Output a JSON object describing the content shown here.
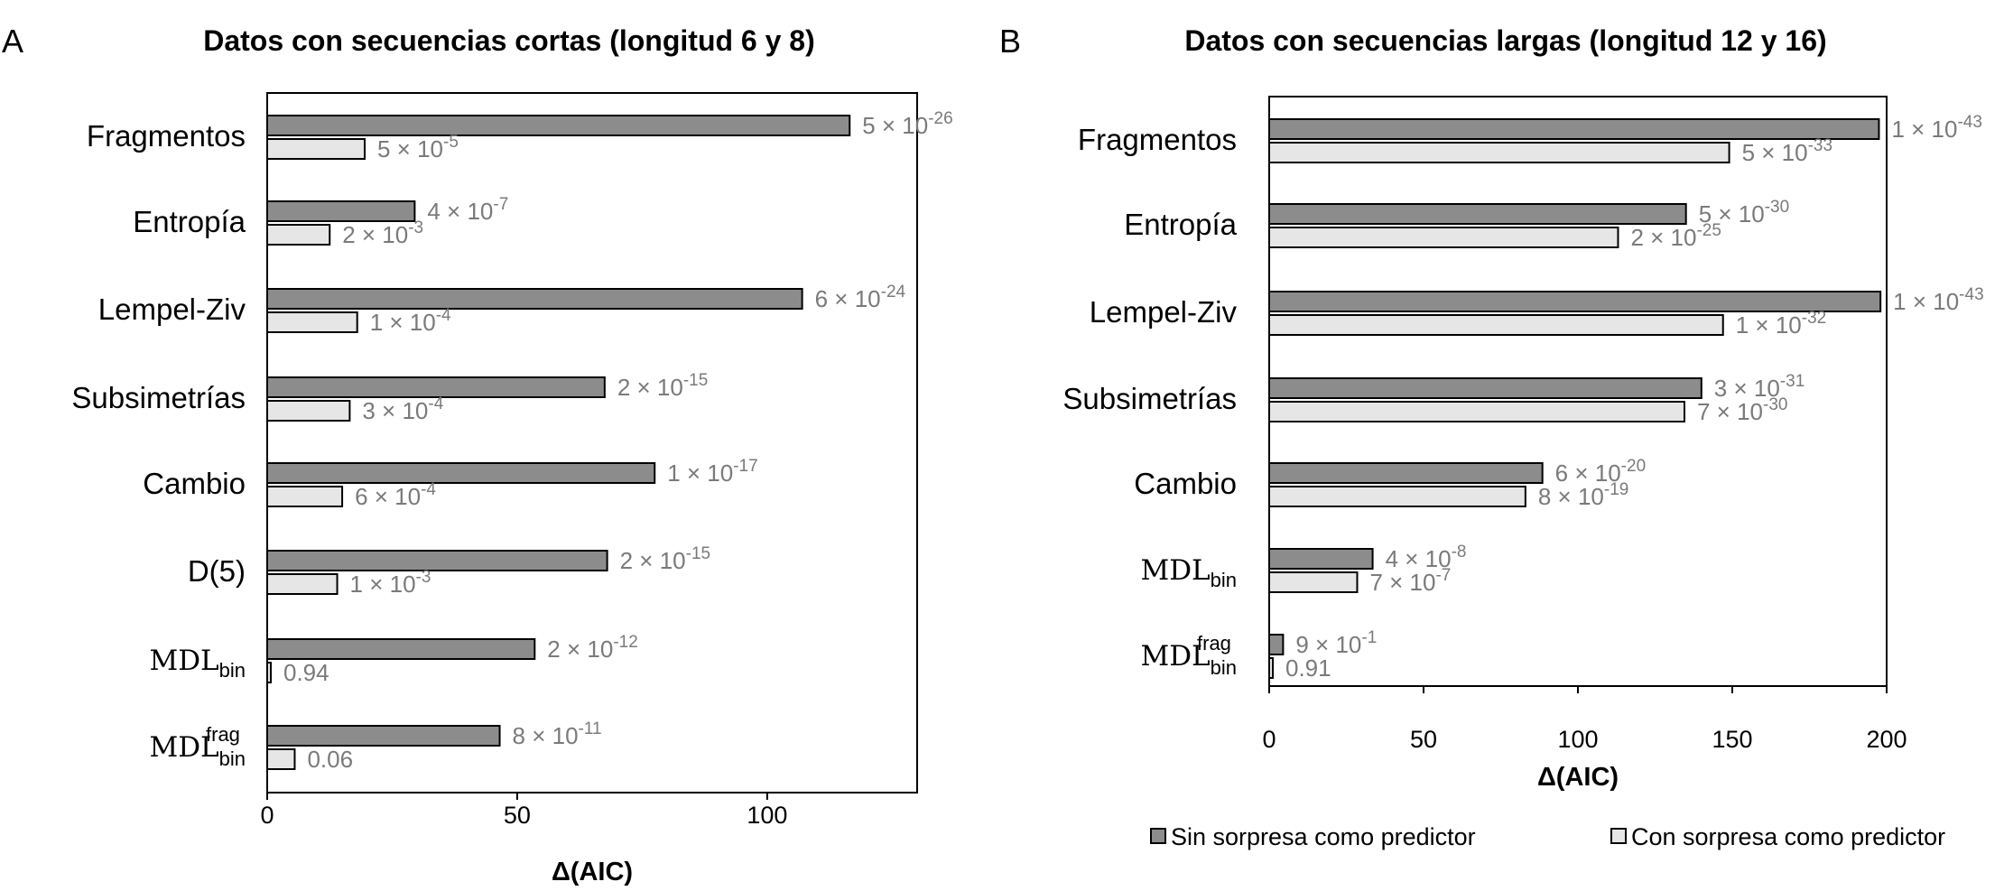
{
  "colors": {
    "sin_sorpresa": "#8c8c8c",
    "con_sorpresa": "#e6e6e6",
    "bar_stroke": "#000000",
    "p_label": "#7a7a7a"
  },
  "legend": {
    "sin_sorpresa": "Sin sorpresa como predictor",
    "con_sorpresa": "Con sorpresa como predictor"
  },
  "chart_data": [
    {
      "panel": "A",
      "type": "bar",
      "orientation": "horizontal",
      "title": "Datos con secuencias cortas (longitud 6 y 8)",
      "xlabel": "Δ(AIC)",
      "xlim": [
        0,
        130
      ],
      "xticks": [
        0,
        50,
        100
      ],
      "grid": false,
      "categories": [
        {
          "text": "Fragmentos"
        },
        {
          "text": "Entropía"
        },
        {
          "text": "Lempel-Ziv"
        },
        {
          "text": "Subsimetrías"
        },
        {
          "text": "Cambio"
        },
        {
          "text": "D(5)"
        },
        {
          "base": "MDL",
          "sub": "bin"
        },
        {
          "base": "MDL",
          "sub": "bin",
          "sup": "frag"
        }
      ],
      "series": [
        {
          "name": "Sin sorpresa como predictor",
          "values": [
            116.5,
            29.5,
            107,
            67.5,
            77.5,
            68,
            53.5,
            46.5
          ],
          "labels": [
            {
              "m": "5",
              "e": "-26"
            },
            {
              "m": "4",
              "e": "-7"
            },
            {
              "m": "6",
              "e": "-24"
            },
            {
              "m": "2",
              "e": "-15"
            },
            {
              "m": "1",
              "e": "-17"
            },
            {
              "m": "2",
              "e": "-15"
            },
            {
              "m": "2",
              "e": "-12"
            },
            {
              "m": "8",
              "e": "-11"
            }
          ]
        },
        {
          "name": "Con sorpresa como predictor",
          "values": [
            19.5,
            12.5,
            18,
            16.5,
            15,
            14,
            0.3,
            5.5
          ],
          "labels": [
            {
              "m": "5",
              "e": "-5"
            },
            {
              "m": "2",
              "e": "-3"
            },
            {
              "m": "1",
              "e": "-4"
            },
            {
              "m": "3",
              "e": "-4"
            },
            {
              "m": "6",
              "e": "-4"
            },
            {
              "m": "1",
              "e": "-3"
            },
            {
              "text": "0.94"
            },
            {
              "text": "0.06"
            }
          ]
        }
      ]
    },
    {
      "panel": "B",
      "type": "bar",
      "orientation": "horizontal",
      "title": "Datos con secuencias largas (longitud 12 y 16)",
      "xlabel": "Δ(AIC)",
      "xlim": [
        0,
        200
      ],
      "xticks": [
        0,
        50,
        100,
        150,
        200
      ],
      "grid": false,
      "categories": [
        {
          "text": "Fragmentos"
        },
        {
          "text": "Entropía"
        },
        {
          "text": "Lempel-Ziv"
        },
        {
          "text": "Subsimetrías"
        },
        {
          "text": "Cambio"
        },
        {
          "base": "MDL",
          "sub": "bin"
        },
        {
          "base": "MDL",
          "sub": "bin",
          "sup": "frag"
        }
      ],
      "series": [
        {
          "name": "Sin sorpresa como predictor",
          "values": [
            197.5,
            135,
            198,
            140,
            88.5,
            33.5,
            4.5
          ],
          "labels": [
            {
              "m": "1",
              "e": "-43"
            },
            {
              "m": "5",
              "e": "-30"
            },
            {
              "m": "1",
              "e": "-43"
            },
            {
              "m": "3",
              "e": "-31"
            },
            {
              "m": "6",
              "e": "-20"
            },
            {
              "m": "4",
              "e": "-8"
            },
            {
              "m": "9",
              "e": "-1"
            }
          ]
        },
        {
          "name": "Con sorpresa como predictor",
          "values": [
            149,
            113,
            147,
            134.5,
            83,
            28.5,
            0.3
          ],
          "labels": [
            {
              "m": "5",
              "e": "-33"
            },
            {
              "m": "2",
              "e": "-25"
            },
            {
              "m": "1",
              "e": "-32"
            },
            {
              "m": "7",
              "e": "-30"
            },
            {
              "m": "8",
              "e": "-19"
            },
            {
              "m": "7",
              "e": "-7"
            },
            {
              "text": "0.91"
            }
          ]
        }
      ]
    }
  ]
}
